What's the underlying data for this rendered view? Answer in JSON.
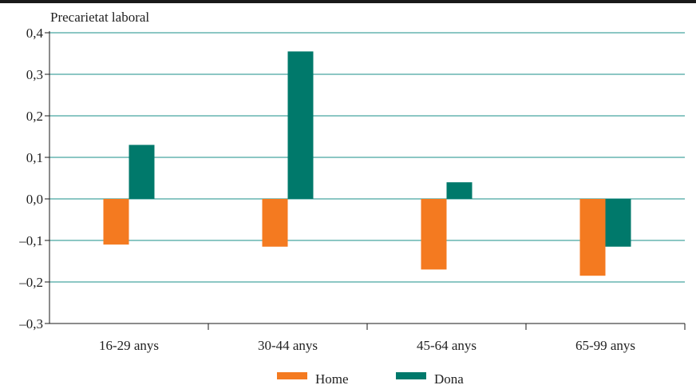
{
  "chart_data": {
    "type": "bar",
    "ylabel": "Precarietat laboral",
    "xlabel": "",
    "categories": [
      "16-29 anys",
      "30-44 anys",
      "45-64 anys",
      "65-99 anys"
    ],
    "series": [
      {
        "name": "Home",
        "color": "#f47a20",
        "values": [
          -0.11,
          -0.115,
          -0.17,
          -0.185
        ]
      },
      {
        "name": "Dona",
        "color": "#00796b",
        "values": [
          0.13,
          0.355,
          0.04,
          -0.115
        ]
      }
    ],
    "ylim": [
      -0.3,
      0.4
    ],
    "yticks": [
      0.4,
      0.3,
      0.2,
      0.1,
      0.0,
      -0.1,
      -0.2,
      -0.3
    ],
    "ytick_labels": [
      "0,4",
      "0,3",
      "0,2",
      "0,1",
      "0,0",
      "–0,1",
      "–0,2",
      "–0,3"
    ],
    "grid": true,
    "legend_position": "bottom-center",
    "grid_color": "#1a8f8a",
    "frame_color": "#1a1a1a"
  }
}
